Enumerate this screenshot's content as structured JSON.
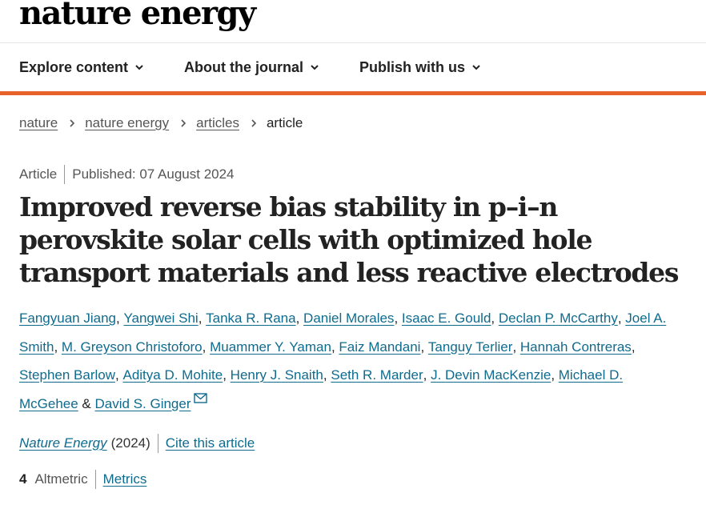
{
  "header": {
    "logo": "nature energy"
  },
  "nav": {
    "items": [
      {
        "label": "Explore content"
      },
      {
        "label": "About the journal"
      },
      {
        "label": "Publish with us"
      }
    ]
  },
  "colors": {
    "accent": "#e8622b",
    "link": "#0f6b8e"
  },
  "breadcrumb": {
    "items": [
      "nature",
      "nature energy",
      "articles"
    ],
    "current": "article"
  },
  "article": {
    "type": "Article",
    "published": "Published: 07 August 2024",
    "title": "Improved reverse bias stability in p–i–n perovskite solar cells with optimized hole transport materials and less reactive electrodes",
    "authors": [
      "Fangyuan Jiang",
      "Yangwei Shi",
      "Tanka R. Rana",
      "Daniel Morales",
      "Isaac E. Gould",
      "Declan P. McCarthy",
      "Joel A. Smith",
      "M. Greyson Christoforo",
      "Muammer Y. Yaman",
      "Faiz Mandani",
      "Tanguy Terlier",
      "Hannah Contreras",
      "Stephen Barlow",
      "Aditya D. Mohite",
      "Henry J. Snaith",
      "Seth R. Marder",
      "J. Devin MacKenzie",
      "Michael D. McGehee",
      "David S. Ginger"
    ],
    "journal": "Nature Energy",
    "year": "(2024)",
    "cite_label": "Cite this article",
    "altmetric_count": "4",
    "altmetric_label": "Altmetric",
    "metrics_label": "Metrics",
    "icons": {
      "nav_chevron": "chevron-down-icon",
      "breadcrumb_sep": "chevron-right-icon",
      "corresponding": "mail-icon"
    }
  }
}
